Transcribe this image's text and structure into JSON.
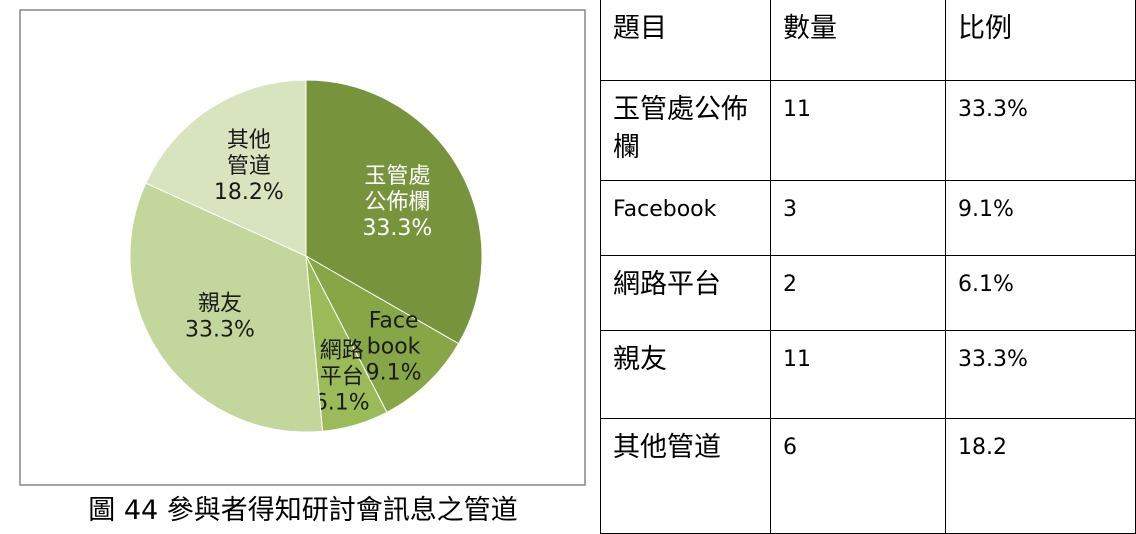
{
  "chart_data": {
    "type": "pie",
    "categories": [
      "玉管處公佈欄",
      "Facebook",
      "網路平台",
      "親友",
      "其他管道"
    ],
    "values": [
      33.3,
      9.1,
      6.1,
      33.3,
      18.2
    ],
    "value_labels": [
      "33.3%",
      "9.1%",
      "6.1%",
      "33.3%",
      "18.2%"
    ],
    "colors": [
      "#77933c",
      "#87a746",
      "#9bbb59",
      "#c3d69b",
      "#d7e4bd"
    ]
  },
  "caption": "圖 44  參與者得知研討會訊息之管道",
  "table": {
    "header": [
      "題目",
      "數量",
      "比例"
    ],
    "rows": [
      [
        "玉管處公佈欄",
        11,
        "33.3%"
      ],
      [
        "Facebook",
        3,
        "9.1%"
      ],
      [
        "網路平台",
        2,
        "6.1%"
      ],
      [
        "親友",
        11,
        "33.3%"
      ],
      [
        "其他管道",
        6,
        18.2
      ]
    ]
  }
}
